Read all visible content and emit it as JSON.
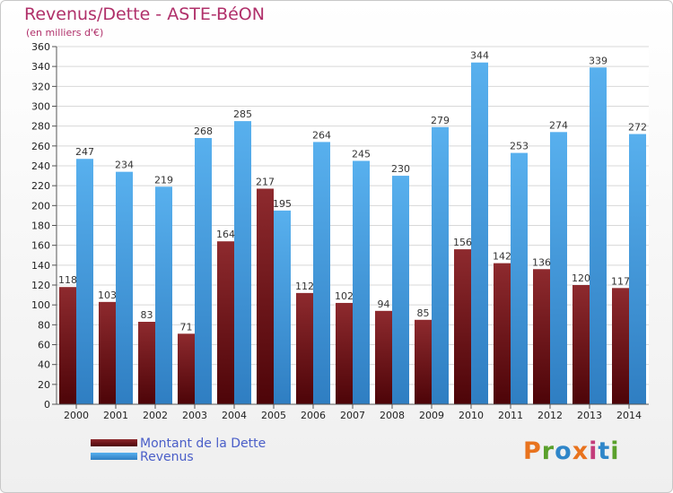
{
  "title": "Revenus/Dette - ASTE-BéON",
  "subtitle": "(en milliers d'€)",
  "brand": {
    "text": "Proxiti",
    "colors": [
      "#e8731e",
      "#5aa02c",
      "#2f86c9",
      "#e8731e",
      "#c43c7a",
      "#2f86c9",
      "#5aa02c"
    ]
  },
  "chart_data": {
    "type": "bar",
    "title": "Revenus/Dette - ASTE-BéON",
    "subtitle": "(en milliers d'€)",
    "categories": [
      "2000",
      "2001",
      "2002",
      "2003",
      "2004",
      "2005",
      "2006",
      "2007",
      "2008",
      "2009",
      "2010",
      "2011",
      "2012",
      "2013",
      "2014"
    ],
    "series": [
      {
        "name": "Montant de la Dette",
        "color": "#6b1014",
        "values": [
          118,
          103,
          83,
          71,
          164,
          217,
          112,
          102,
          94,
          85,
          156,
          142,
          136,
          120,
          117
        ]
      },
      {
        "name": "Revenus",
        "color": "#4da3e6",
        "values": [
          247,
          234,
          219,
          268,
          285,
          195,
          264,
          245,
          230,
          279,
          344,
          253,
          274,
          339,
          272
        ]
      }
    ],
    "yticks": [
      0,
      20,
      40,
      60,
      80,
      100,
      120,
      140,
      160,
      180,
      200,
      220,
      240,
      260,
      280,
      300,
      320,
      340,
      360
    ],
    "ylim": [
      0,
      360
    ],
    "grid": true,
    "legend": "bottom-left"
  }
}
